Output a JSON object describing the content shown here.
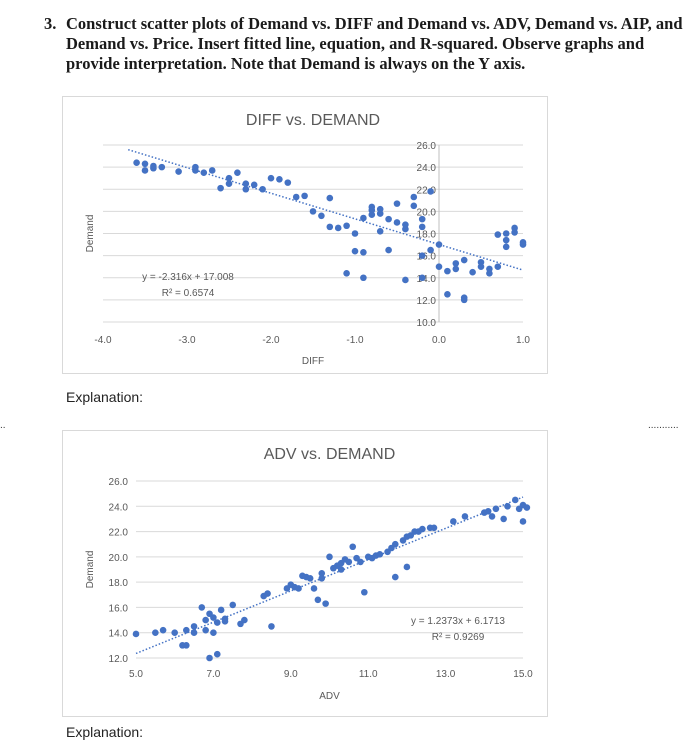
{
  "question": {
    "number": "3.",
    "text": "Construct scatter plots of Demand vs. DIFF and Demand vs. ADV, Demand vs. AIP, and Demand vs. Price.  Insert fitted line, equation, and R-squared. Observe graphs and provide interpretation.  Note that Demand is always on the Y axis."
  },
  "explanation_labels": [
    "Explanation:",
    "Explanation:"
  ],
  "side_markers": {
    "left": "..",
    "right": "..........."
  },
  "colors": {
    "marker": "#4472c4",
    "trend": "#4472c4",
    "grid": "#d9d9d9",
    "text": "#595959"
  },
  "chart_data": [
    {
      "type": "scatter",
      "title": "DIFF vs. DEMAND",
      "xlabel": "DIFF",
      "ylabel": "Demand",
      "xlim": [
        -4.0,
        1.0
      ],
      "ylim": [
        10.0,
        26.0
      ],
      "x_ticks": [
        "-4.0",
        "-3.0",
        "-2.0",
        "-1.0",
        "0.0",
        "1.0"
      ],
      "y_ticks": [
        "10.0",
        "12.0",
        "14.0",
        "16.0",
        "18.0",
        "20.0",
        "22.0",
        "24.0",
        "26.0"
      ],
      "y_axis_at_x": 0.0,
      "grid": true,
      "trendline": {
        "type": "linear",
        "slope": -2.316,
        "intercept": 17.008,
        "style": "dotted"
      },
      "equation": "y = -2.316x + 17.008",
      "r_squared": "R² = 0.6574",
      "points": [
        [
          -3.6,
          24.4
        ],
        [
          -3.5,
          24.3
        ],
        [
          -3.5,
          23.7
        ],
        [
          -3.4,
          24.1
        ],
        [
          -3.4,
          23.9
        ],
        [
          -3.3,
          24.0
        ],
        [
          -3.1,
          23.6
        ],
        [
          -2.9,
          23.7
        ],
        [
          -2.9,
          24.0
        ],
        [
          -2.8,
          23.5
        ],
        [
          -2.7,
          23.7
        ],
        [
          -2.6,
          22.1
        ],
        [
          -2.5,
          22.5
        ],
        [
          -2.5,
          23.0
        ],
        [
          -2.4,
          23.5
        ],
        [
          -2.3,
          22.0
        ],
        [
          -2.3,
          22.5
        ],
        [
          -2.2,
          22.4
        ],
        [
          -2.1,
          22.0
        ],
        [
          -2.0,
          23.0
        ],
        [
          -1.9,
          22.9
        ],
        [
          -1.8,
          22.6
        ],
        [
          -1.7,
          21.3
        ],
        [
          -1.6,
          21.4
        ],
        [
          -1.5,
          20.0
        ],
        [
          -1.4,
          19.6
        ],
        [
          -1.3,
          18.6
        ],
        [
          -1.3,
          21.2
        ],
        [
          -1.2,
          18.5
        ],
        [
          -1.1,
          18.7
        ],
        [
          -1.0,
          18.0
        ],
        [
          -1.0,
          16.4
        ],
        [
          -0.9,
          16.3
        ],
        [
          -0.9,
          19.4
        ],
        [
          -0.8,
          19.7
        ],
        [
          -0.8,
          20.1
        ],
        [
          -0.8,
          20.4
        ],
        [
          -0.7,
          20.2
        ],
        [
          -0.7,
          18.2
        ],
        [
          -0.7,
          19.8
        ],
        [
          -0.6,
          19.3
        ],
        [
          -0.5,
          19.0
        ],
        [
          -0.5,
          20.7
        ],
        [
          -0.4,
          18.4
        ],
        [
          -0.4,
          18.8
        ],
        [
          -0.3,
          21.3
        ],
        [
          -0.3,
          20.5
        ],
        [
          -0.2,
          19.3
        ],
        [
          -0.2,
          18.6
        ],
        [
          -0.1,
          21.8
        ],
        [
          -0.1,
          16.5
        ],
        [
          0.0,
          17.0
        ],
        [
          0.0,
          15.0
        ],
        [
          0.1,
          14.6
        ],
        [
          0.2,
          14.8
        ],
        [
          0.2,
          15.3
        ],
        [
          0.3,
          15.6
        ],
        [
          0.3,
          12.2
        ],
        [
          0.3,
          12.0
        ],
        [
          0.4,
          14.5
        ],
        [
          0.5,
          15.4
        ],
        [
          0.5,
          15.0
        ],
        [
          0.6,
          14.8
        ],
        [
          0.6,
          14.4
        ],
        [
          0.7,
          15.0
        ],
        [
          0.7,
          17.9
        ],
        [
          0.8,
          16.8
        ],
        [
          0.8,
          17.4
        ],
        [
          0.8,
          18.0
        ],
        [
          0.9,
          18.1
        ],
        [
          0.9,
          18.5
        ],
        [
          1.0,
          17.0
        ],
        [
          1.0,
          17.2
        ],
        [
          -0.6,
          16.5
        ],
        [
          -0.2,
          16.0
        ],
        [
          0.1,
          12.5
        ],
        [
          -1.1,
          14.4
        ],
        [
          -0.9,
          14.0
        ],
        [
          -0.4,
          13.8
        ],
        [
          -0.2,
          14.0
        ]
      ]
    },
    {
      "type": "scatter",
      "title": "ADV vs. DEMAND",
      "xlabel": "ADV",
      "ylabel": "Demand",
      "xlim": [
        5.0,
        15.0
      ],
      "ylim": [
        12.0,
        26.0
      ],
      "x_ticks": [
        "5.0",
        "7.0",
        "9.0",
        "11.0",
        "13.0",
        "15.0"
      ],
      "y_ticks": [
        "12.0",
        "14.0",
        "16.0",
        "18.0",
        "20.0",
        "22.0",
        "24.0",
        "26.0"
      ],
      "grid": true,
      "trendline": {
        "type": "linear",
        "slope": 1.2373,
        "intercept": 6.1713,
        "style": "dotted"
      },
      "equation": "y = 1.2373x + 6.1713",
      "r_squared": "R² = 0.9269",
      "points": [
        [
          5.0,
          13.9
        ],
        [
          5.5,
          14.0
        ],
        [
          5.7,
          14.2
        ],
        [
          6.0,
          14.0
        ],
        [
          6.2,
          13.0
        ],
        [
          6.3,
          13.0
        ],
        [
          6.3,
          14.2
        ],
        [
          6.5,
          14.5
        ],
        [
          6.5,
          14.0
        ],
        [
          6.7,
          16.0
        ],
        [
          6.8,
          15.0
        ],
        [
          6.8,
          14.2
        ],
        [
          6.9,
          12.0
        ],
        [
          6.9,
          15.5
        ],
        [
          7.0,
          14.0
        ],
        [
          7.0,
          15.2
        ],
        [
          7.1,
          14.8
        ],
        [
          7.1,
          12.3
        ],
        [
          7.2,
          15.8
        ],
        [
          7.3,
          15.1
        ],
        [
          7.3,
          14.9
        ],
        [
          7.5,
          16.2
        ],
        [
          7.7,
          14.7
        ],
        [
          7.8,
          15.0
        ],
        [
          8.3,
          16.9
        ],
        [
          8.4,
          17.1
        ],
        [
          8.5,
          14.5
        ],
        [
          8.9,
          17.5
        ],
        [
          9.0,
          17.8
        ],
        [
          9.1,
          17.6
        ],
        [
          9.2,
          17.5
        ],
        [
          9.3,
          18.5
        ],
        [
          9.4,
          18.4
        ],
        [
          9.5,
          18.3
        ],
        [
          9.6,
          17.5
        ],
        [
          9.7,
          16.6
        ],
        [
          9.8,
          18.3
        ],
        [
          9.8,
          18.7
        ],
        [
          9.9,
          16.3
        ],
        [
          10.0,
          20.0
        ],
        [
          10.1,
          19.1
        ],
        [
          10.2,
          19.3
        ],
        [
          10.3,
          19.5
        ],
        [
          10.3,
          19.0
        ],
        [
          10.4,
          19.8
        ],
        [
          10.5,
          19.6
        ],
        [
          10.6,
          20.8
        ],
        [
          10.7,
          19.9
        ],
        [
          10.8,
          19.6
        ],
        [
          10.9,
          17.2
        ],
        [
          11.0,
          20.0
        ],
        [
          11.1,
          19.9
        ],
        [
          11.2,
          20.1
        ],
        [
          11.3,
          20.2
        ],
        [
          11.5,
          20.4
        ],
        [
          11.6,
          20.7
        ],
        [
          11.7,
          21.0
        ],
        [
          11.7,
          18.4
        ],
        [
          11.9,
          21.3
        ],
        [
          12.0,
          21.6
        ],
        [
          12.0,
          19.2
        ],
        [
          12.1,
          21.7
        ],
        [
          12.2,
          22.0
        ],
        [
          12.3,
          22.0
        ],
        [
          12.4,
          22.2
        ],
        [
          12.6,
          22.3
        ],
        [
          12.7,
          22.3
        ],
        [
          13.2,
          22.8
        ],
        [
          13.5,
          23.2
        ],
        [
          14.0,
          23.5
        ],
        [
          14.1,
          23.6
        ],
        [
          14.2,
          23.2
        ],
        [
          14.3,
          23.8
        ],
        [
          14.5,
          23.0
        ],
        [
          14.6,
          24.0
        ],
        [
          14.8,
          24.5
        ],
        [
          14.9,
          23.8
        ],
        [
          15.0,
          22.8
        ],
        [
          15.0,
          24.1
        ],
        [
          15.1,
          23.9
        ]
      ]
    }
  ]
}
